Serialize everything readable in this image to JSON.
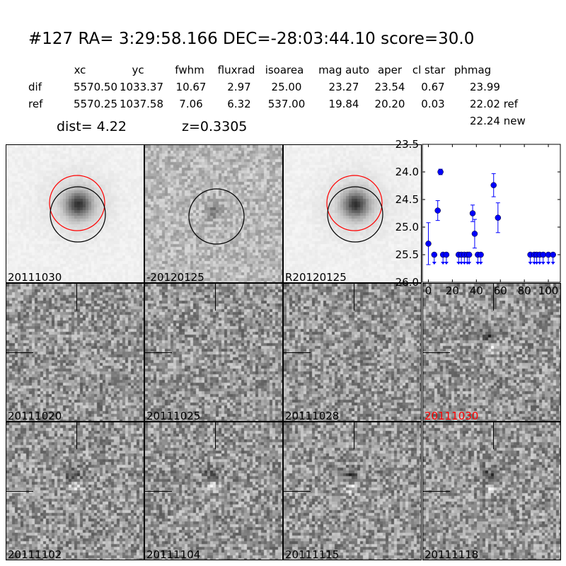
{
  "header": {
    "title": "#127   RA= 3:29:58.166 DEC=-28:03:44.10       score=30.0",
    "columns": [
      "xc",
      "yc",
      "fwhm",
      "fluxrad",
      "isoarea",
      "mag auto",
      "aper",
      "cl star",
      "phmag"
    ],
    "rows": [
      {
        "label": "dif",
        "values": [
          "5570.50",
          "1033.37",
          "10.67",
          "2.97",
          "25.00",
          "23.27",
          "23.54",
          "0.67",
          "23.99"
        ]
      },
      {
        "label": "ref",
        "values": [
          "5570.25",
          "1037.58",
          "7.06",
          "6.32",
          "537.00",
          "19.84",
          "20.20",
          "0.03",
          "22.02 ref"
        ]
      }
    ],
    "new_phmag": "22.24 new",
    "dist": "dist=  4.22",
    "z": "z=0.3305"
  },
  "panels": [
    {
      "label": "20111030",
      "style": "ref"
    },
    {
      "label": "-20120125",
      "style": "diff"
    },
    {
      "label": "R20120125",
      "style": "ref"
    },
    {
      "label": "20111020",
      "style": "epoch"
    },
    {
      "label": "20111025",
      "style": "epoch"
    },
    {
      "label": "20111028",
      "style": "epoch"
    },
    {
      "label": "20111030",
      "style": "epoch",
      "color": "#ff0000"
    },
    {
      "label": "20111102",
      "style": "epoch"
    },
    {
      "label": "20111104",
      "style": "epoch"
    },
    {
      "label": "20111115",
      "style": "epoch"
    },
    {
      "label": "20111118",
      "style": "epoch"
    }
  ],
  "chart_data": {
    "type": "scatter",
    "xlim": [
      -5,
      110
    ],
    "ylim": [
      26.0,
      23.5
    ],
    "y_inverted": true,
    "xticks": [
      "0",
      "20",
      "40",
      "60",
      "80",
      "100"
    ],
    "yticks": [
      "23.5",
      "24.0",
      "24.5",
      "25.0",
      "25.5",
      "26.0"
    ],
    "color": "#0000ff",
    "detections": [
      {
        "x": 0,
        "y": 25.3,
        "err": 0.38
      },
      {
        "x": 7.8,
        "y": 24.7,
        "err": 0.18
      },
      {
        "x": 10.1,
        "y": 24.0,
        "err": 0.05
      },
      {
        "x": 36.9,
        "y": 24.75,
        "err": 0.15
      },
      {
        "x": 38.6,
        "y": 25.12,
        "err": 0.26
      },
      {
        "x": 54.4,
        "y": 24.24,
        "err": 0.21
      },
      {
        "x": 58.0,
        "y": 24.83,
        "err": 0.27
      }
    ],
    "upper_limits": {
      "y": 25.5,
      "x": [
        4.9,
        12.2,
        15.0,
        25.2,
        27.5,
        30.0,
        32.5,
        34.0,
        41.2,
        43.7,
        85.0,
        88.3,
        90.3,
        92.8,
        95.7,
        100.0,
        103.9
      ]
    }
  }
}
